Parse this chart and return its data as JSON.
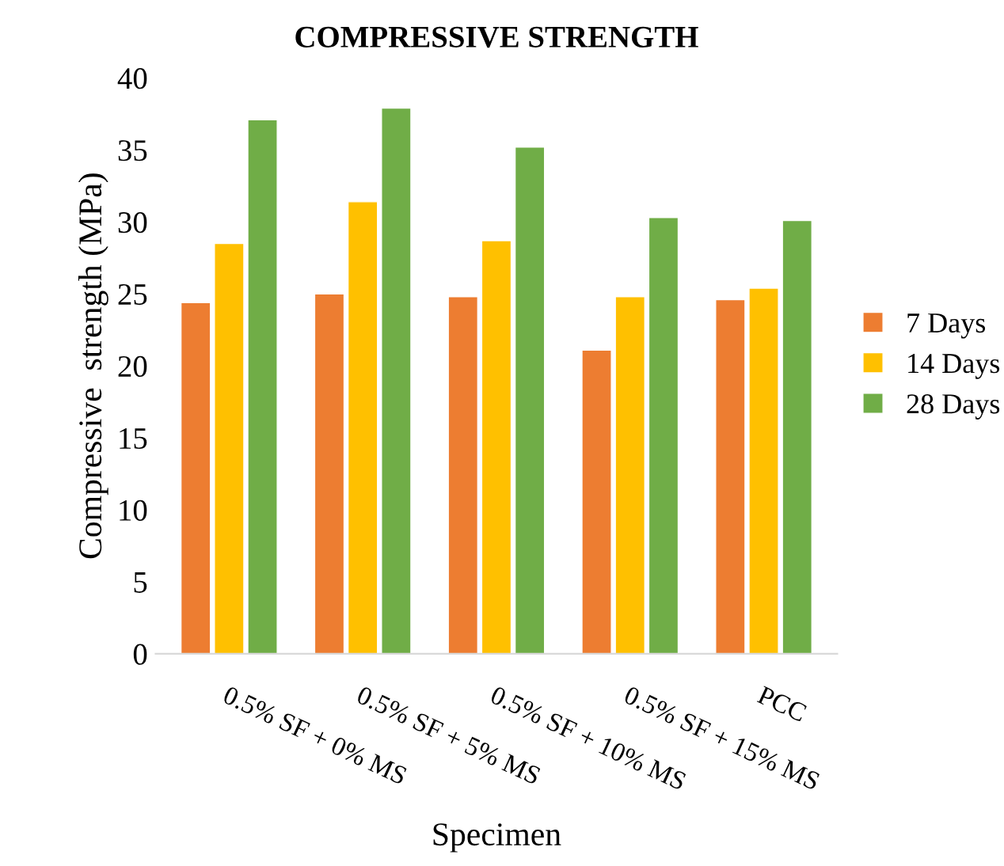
{
  "chart_data": {
    "type": "bar",
    "title": "COMPRESSIVE STRENGTH",
    "xlabel": "Specimen",
    "ylabel": "Compressive  strength (MPa)",
    "categories": [
      "0.5% SF + 0% MS",
      "0.5% SF + 5% MS",
      "0.5% SF + 10% MS",
      "0.5% SF + 15% MS",
      "PCC"
    ],
    "series": [
      {
        "name": "7 Days",
        "color": "#ed7d31",
        "values": [
          24.4,
          25.0,
          24.8,
          21.1,
          24.6
        ]
      },
      {
        "name": "14 Days",
        "color": "#ffc000",
        "values": [
          28.5,
          31.4,
          28.7,
          24.8,
          25.4
        ]
      },
      {
        "name": "28 Days",
        "color": "#70ad47",
        "values": [
          37.1,
          37.9,
          35.2,
          30.3,
          30.1
        ]
      }
    ],
    "ylim": [
      0,
      40
    ],
    "yticks": [
      0,
      5,
      10,
      15,
      20,
      25,
      30,
      35,
      40
    ],
    "grid": false,
    "legend": "right"
  }
}
